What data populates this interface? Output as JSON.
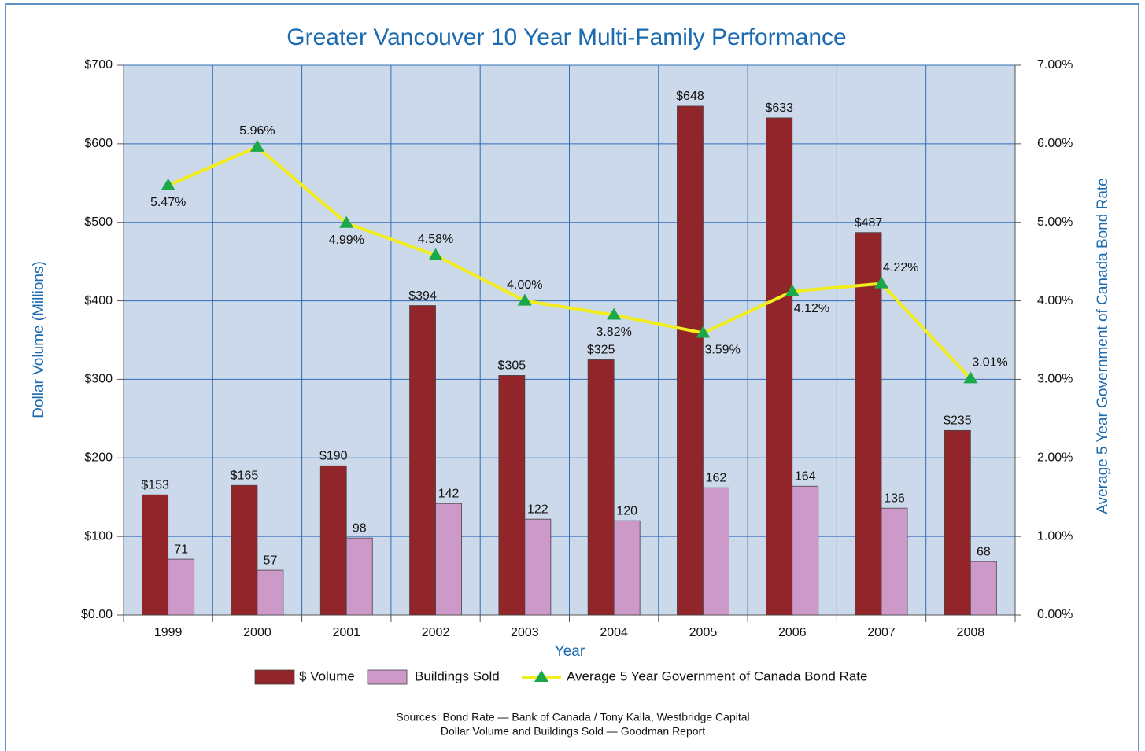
{
  "chart_data": {
    "type": "bar_line",
    "title": "Greater Vancouver 10 Year Multi-Family Performance",
    "x_label": "Year",
    "y_label": "Dollar Volume (Millions)",
    "y2_label": "Average 5 Year Government of Canada Bond Rate",
    "categories": [
      "1999",
      "2000",
      "2001",
      "2002",
      "2003",
      "2004",
      "2005",
      "2006",
      "2007",
      "2008"
    ],
    "series": [
      {
        "name": "$ Volume",
        "type": "bar",
        "color": "#92252a",
        "values": [
          153,
          165,
          190,
          394,
          305,
          325,
          648,
          633,
          487,
          235
        ],
        "value_labels": [
          "$153",
          "$165",
          "$190",
          "$394",
          "$305",
          "$325",
          "$648",
          "$633",
          "$487",
          "$235"
        ]
      },
      {
        "name": "Buildings Sold",
        "type": "bar",
        "color": "#cc99c8",
        "values": [
          71,
          57,
          98,
          142,
          122,
          120,
          162,
          164,
          136,
          68
        ]
      },
      {
        "name": "Average 5 Year Government of Canada Bond Rate",
        "type": "line",
        "axis": "y2",
        "color": "#f2ee1e",
        "marker_color": "#1aa84a",
        "values": [
          5.47,
          5.96,
          4.99,
          4.58,
          4.0,
          3.82,
          3.59,
          4.12,
          4.22,
          3.01
        ],
        "value_labels": [
          "5.47%",
          "5.96%",
          "4.99%",
          "4.58%",
          "4.00%",
          "3.82%",
          "3.59%",
          "4.12%",
          "4.22%",
          "3.01%"
        ]
      }
    ],
    "ylim": [
      0,
      700
    ],
    "yticks": [
      {
        "value": 0,
        "label": "$0.00"
      },
      {
        "value": 100,
        "label": "$100"
      },
      {
        "value": 200,
        "label": "$200"
      },
      {
        "value": 300,
        "label": "$300"
      },
      {
        "value": 400,
        "label": "$400"
      },
      {
        "value": 500,
        "label": "$500"
      },
      {
        "value": 600,
        "label": "$600"
      },
      {
        "value": 700,
        "label": "$700"
      }
    ],
    "y2lim": [
      0,
      7
    ],
    "y2ticks": [
      {
        "value": 0,
        "label": "0.00%"
      },
      {
        "value": 1,
        "label": "1.00%"
      },
      {
        "value": 2,
        "label": "2.00%"
      },
      {
        "value": 3,
        "label": "3.00%"
      },
      {
        "value": 4,
        "label": "4.00%"
      },
      {
        "value": 5,
        "label": "5.00%"
      },
      {
        "value": 6,
        "label": "6.00%"
      },
      {
        "value": 7,
        "label": "7.00%"
      }
    ],
    "grid": true,
    "legend": "bottom",
    "notes": [
      "Sources: Bond Rate — Bank of Canada / Tony Kalla, Westbridge Capital",
      "Dollar Volume and Buildings Sold — Goodman Report"
    ]
  }
}
